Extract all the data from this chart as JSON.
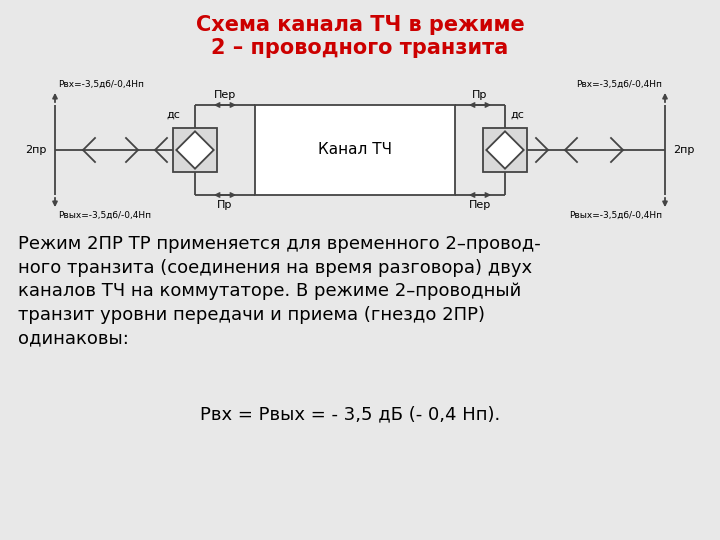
{
  "title_line1": "Схема канала ТЧ в режиме",
  "title_line2": "2 – проводного транзита",
  "title_color": "#cc0000",
  "title_fontsize": 15,
  "bg_color": "#e8e8e8",
  "line_color": "#444444",
  "text_color": "#000000",
  "label_2pr_left": "2пр",
  "label_2pr_right": "2пр",
  "label_ds_left": "дс",
  "label_ds_right": "дс",
  "label_per_top_left": "Пер",
  "label_pr_bot_left": "Пр",
  "label_pr_top_right": "Пр",
  "label_per_bot_right": "Пер",
  "label_pvx_top_left": "Pвх=-3,5дб/-0,4Нп",
  "label_pvyx_bot_left": "Pвых=-3,5дб/-0,4Нп",
  "label_pvx_top_right": "Pвх=-3,5дб/-0,4Нп",
  "label_pvyx_bot_right": "Pвых=-3,5дб/-0,4Нп",
  "canal_label": "Канал ТЧ",
  "body_text": "Режим 2ПР ТР применяется для временного 2–провод-\nного транзита (соединения на время разговора) двух\nканалов ТЧ на коммутаторе. В режиме 2–проводный\nтранзит уровни передачи и приема (гнездо 2ПР)\nодинаковы:",
  "formula": "Рвх = Рвых = - 3,5 дБ (- 0,4 Нп).",
  "body_fontsize": 13,
  "formula_fontsize": 13
}
